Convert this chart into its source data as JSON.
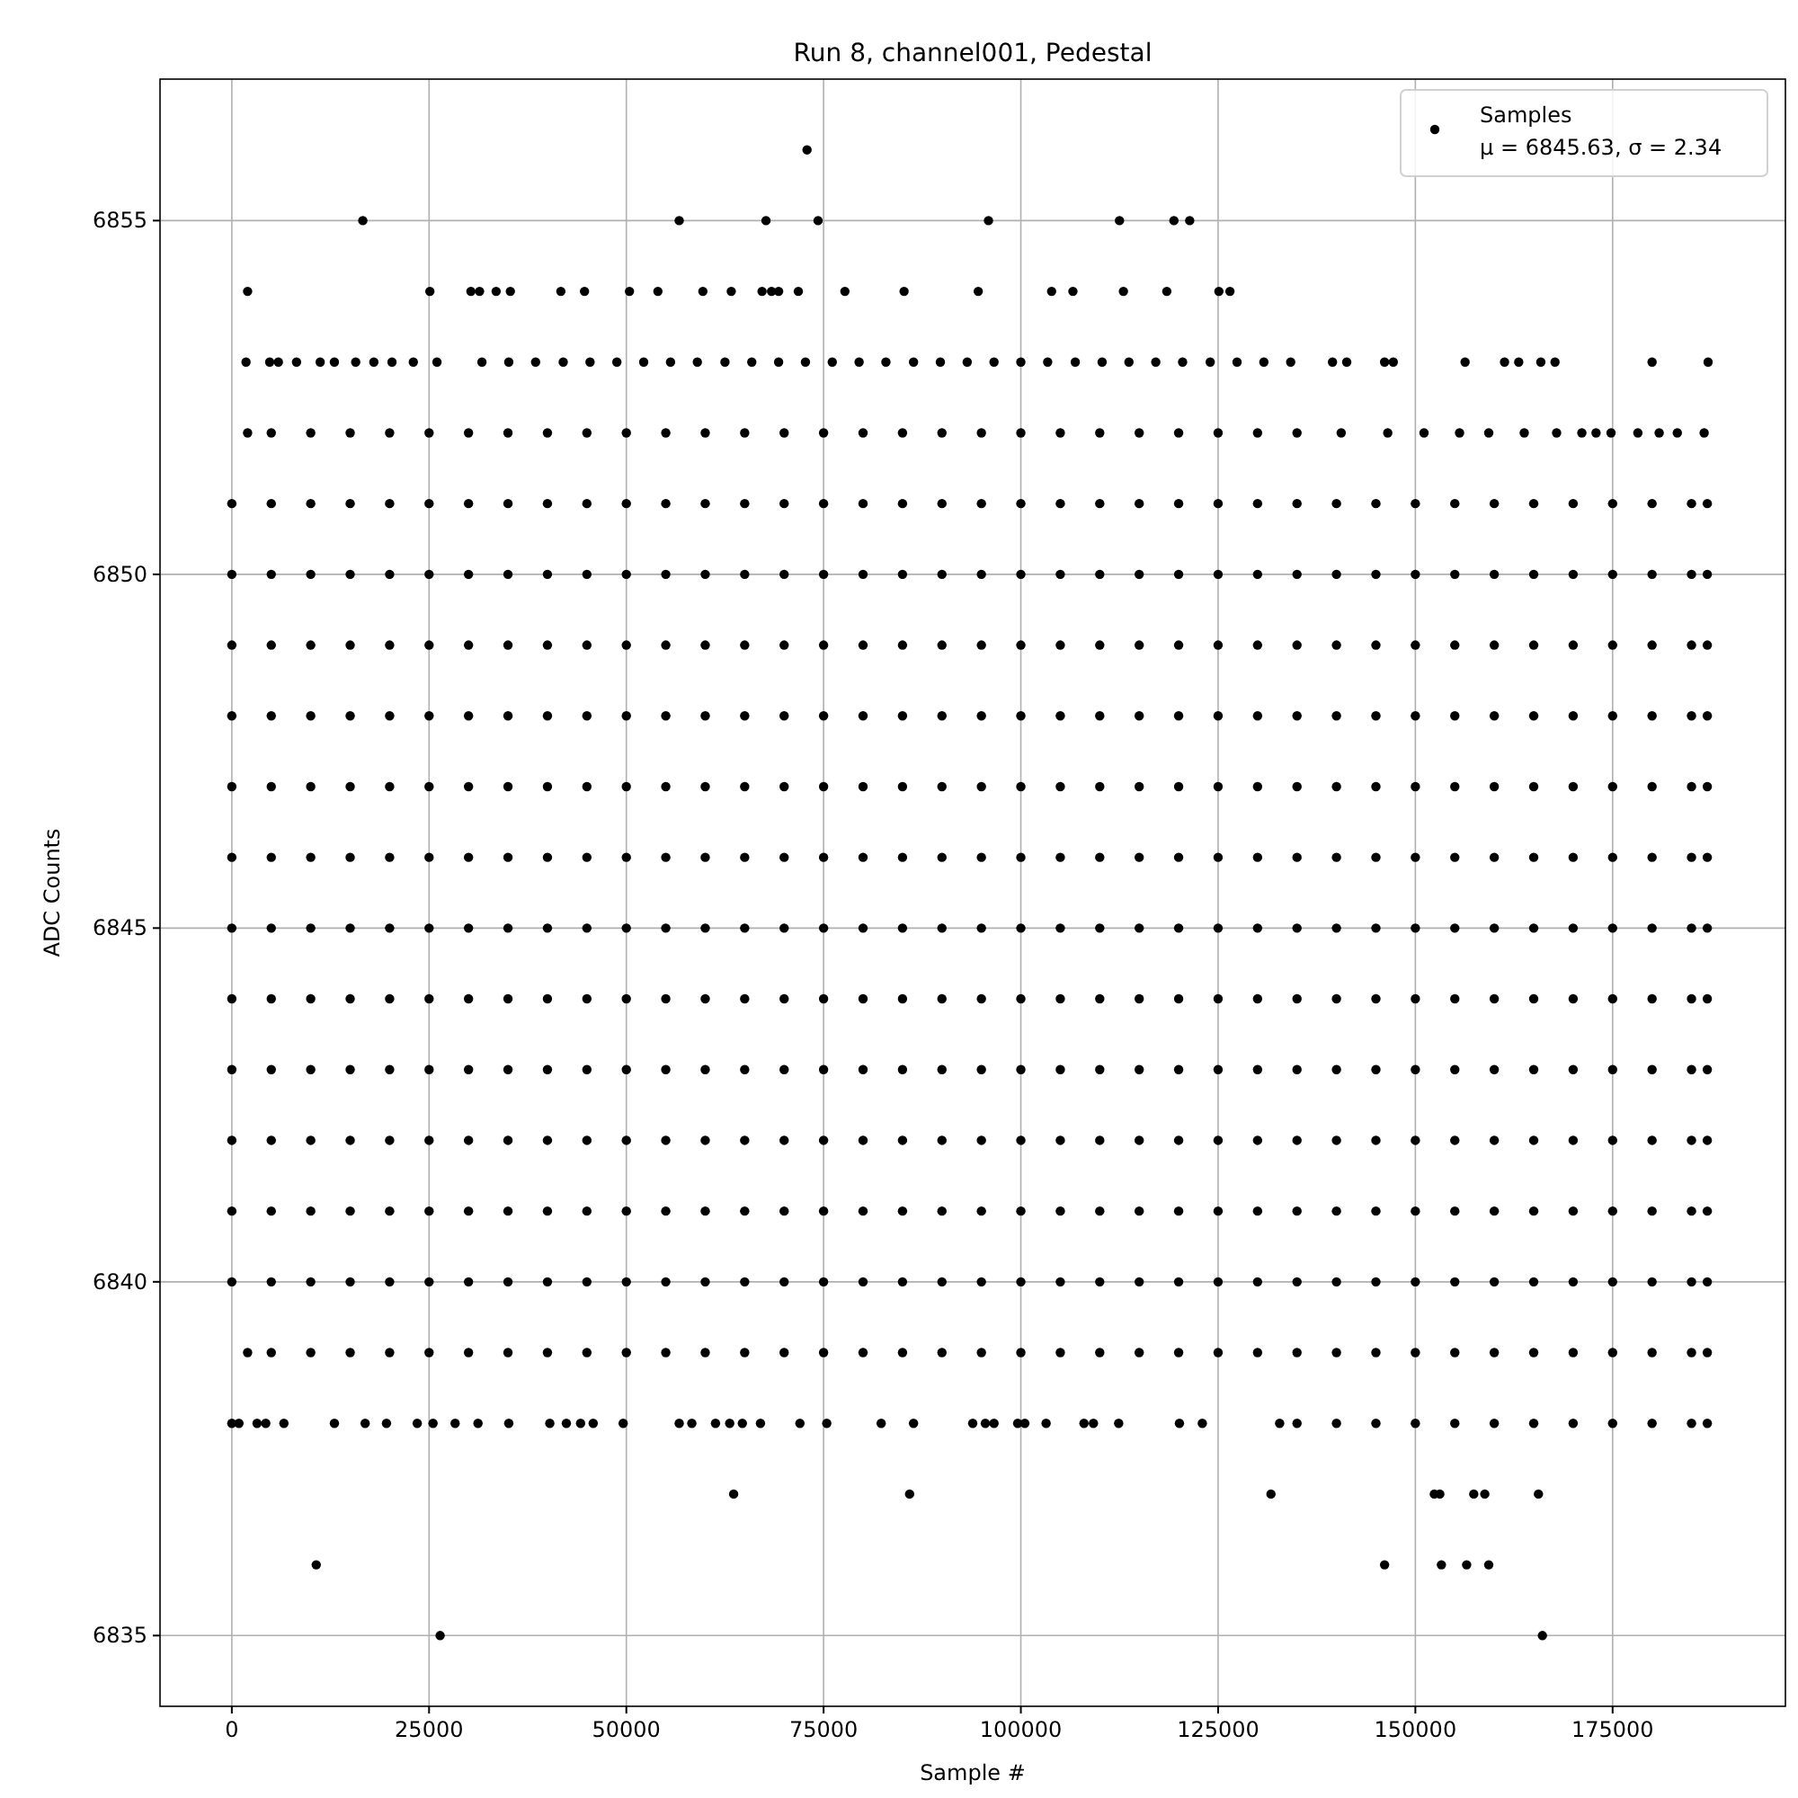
{
  "chart_data": {
    "type": "scatter",
    "title": "Run 8, channel001, Pedestal",
    "xlabel": "Sample #",
    "ylabel": "ADC Counts",
    "xlim": [
      -9100,
      196900
    ],
    "ylim": [
      6834,
      6857
    ],
    "xticks": [
      0,
      25000,
      50000,
      75000,
      100000,
      125000,
      150000,
      175000
    ],
    "yticks": [
      6835,
      6840,
      6845,
      6850,
      6855
    ],
    "grid": true,
    "legend": "top right",
    "marker": "circle",
    "annotations": [
      "μ = 6845.63, σ = 2.34"
    ],
    "series": [
      {
        "name": "Samples",
        "color": "#000000",
        "x": [
          0,
          5000,
          10000,
          15000,
          20000,
          25000,
          30000,
          35000,
          40000,
          45000,
          50000,
          55000,
          60000,
          65000,
          70000,
          75000,
          80000,
          85000,
          90000,
          95000,
          100000,
          105000,
          110000,
          115000,
          120000,
          125000,
          130000,
          135000,
          140000,
          145000,
          150000,
          155000,
          160000,
          165000,
          170000,
          175000,
          180000,
          185000,
          187000
        ],
        "values": [
          6845,
          6845,
          6845,
          6845,
          6845,
          6845,
          6845,
          6845,
          6845,
          6845,
          6845,
          6845,
          6845,
          6845,
          6845,
          6845,
          6845,
          6845,
          6845,
          6845,
          6845,
          6845,
          6845,
          6845,
          6845,
          6845,
          6845,
          6845,
          6845,
          6845,
          6845,
          6845,
          6845,
          6845,
          6845,
          6845,
          6845,
          6845,
          6845
        ]
      },
      {
        "color": "#000000",
        "x": [
          0,
          5000,
          10000,
          15000,
          20000,
          25000,
          30000,
          35000,
          40000,
          45000,
          50000,
          55000,
          60000,
          65000,
          70000,
          75000,
          80000,
          85000,
          90000,
          95000,
          100000,
          105000,
          110000,
          115000,
          120000,
          125000,
          130000,
          135000,
          140000,
          145000,
          150000,
          155000,
          160000,
          165000,
          170000,
          175000,
          180000,
          185000,
          187000
        ],
        "values": [
          6840,
          6840,
          6840,
          6840,
          6840,
          6840,
          6840,
          6840,
          6840,
          6840,
          6840,
          6840,
          6840,
          6840,
          6840,
          6840,
          6840,
          6840,
          6840,
          6840,
          6840,
          6840,
          6840,
          6840,
          6840,
          6840,
          6840,
          6840,
          6840,
          6840,
          6840,
          6840,
          6840,
          6840,
          6840,
          6840,
          6840,
          6840,
          6840
        ]
      },
      {
        "color": "#000000",
        "x": [
          0,
          5000,
          10000,
          15000,
          20000,
          25000,
          30000,
          35000,
          40000,
          45000,
          50000,
          55000,
          60000,
          65000,
          70000,
          75000,
          80000,
          85000,
          90000,
          95000,
          100000,
          105000,
          110000,
          115000,
          120000,
          125000,
          130000,
          135000,
          140000,
          145000,
          150000,
          155000,
          160000,
          165000,
          170000,
          175000,
          180000,
          185000,
          187000
        ],
        "values": [
          6841,
          6841,
          6841,
          6841,
          6841,
          6841,
          6841,
          6841,
          6841,
          6841,
          6841,
          6841,
          6841,
          6841,
          6841,
          6841,
          6841,
          6841,
          6841,
          6841,
          6841,
          6841,
          6841,
          6841,
          6841,
          6841,
          6841,
          6841,
          6841,
          6841,
          6841,
          6841,
          6841,
          6841,
          6841,
          6841,
          6841,
          6841,
          6841
        ]
      },
      {
        "color": "#000000",
        "x": [
          0,
          5000,
          10000,
          15000,
          20000,
          25000,
          30000,
          35000,
          40000,
          45000,
          50000,
          55000,
          60000,
          65000,
          70000,
          75000,
          80000,
          85000,
          90000,
          95000,
          100000,
          105000,
          110000,
          115000,
          120000,
          125000,
          130000,
          135000,
          140000,
          145000,
          150000,
          155000,
          160000,
          165000,
          170000,
          175000,
          180000,
          185000,
          187000
        ],
        "values": [
          6842,
          6842,
          6842,
          6842,
          6842,
          6842,
          6842,
          6842,
          6842,
          6842,
          6842,
          6842,
          6842,
          6842,
          6842,
          6842,
          6842,
          6842,
          6842,
          6842,
          6842,
          6842,
          6842,
          6842,
          6842,
          6842,
          6842,
          6842,
          6842,
          6842,
          6842,
          6842,
          6842,
          6842,
          6842,
          6842,
          6842,
          6842,
          6842
        ]
      },
      {
        "color": "#000000",
        "x": [
          0,
          5000,
          10000,
          15000,
          20000,
          25000,
          30000,
          35000,
          40000,
          45000,
          50000,
          55000,
          60000,
          65000,
          70000,
          75000,
          80000,
          85000,
          90000,
          95000,
          100000,
          105000,
          110000,
          115000,
          120000,
          125000,
          130000,
          135000,
          140000,
          145000,
          150000,
          155000,
          160000,
          165000,
          170000,
          175000,
          180000,
          185000,
          187000
        ],
        "values": [
          6843,
          6843,
          6843,
          6843,
          6843,
          6843,
          6843,
          6843,
          6843,
          6843,
          6843,
          6843,
          6843,
          6843,
          6843,
          6843,
          6843,
          6843,
          6843,
          6843,
          6843,
          6843,
          6843,
          6843,
          6843,
          6843,
          6843,
          6843,
          6843,
          6843,
          6843,
          6843,
          6843,
          6843,
          6843,
          6843,
          6843,
          6843,
          6843
        ]
      },
      {
        "color": "#000000",
        "x": [
          0,
          5000,
          10000,
          15000,
          20000,
          25000,
          30000,
          35000,
          40000,
          45000,
          50000,
          55000,
          60000,
          65000,
          70000,
          75000,
          80000,
          85000,
          90000,
          95000,
          100000,
          105000,
          110000,
          115000,
          120000,
          125000,
          130000,
          135000,
          140000,
          145000,
          150000,
          155000,
          160000,
          165000,
          170000,
          175000,
          180000,
          185000,
          187000
        ],
        "values": [
          6844,
          6844,
          6844,
          6844,
          6844,
          6844,
          6844,
          6844,
          6844,
          6844,
          6844,
          6844,
          6844,
          6844,
          6844,
          6844,
          6844,
          6844,
          6844,
          6844,
          6844,
          6844,
          6844,
          6844,
          6844,
          6844,
          6844,
          6844,
          6844,
          6844,
          6844,
          6844,
          6844,
          6844,
          6844,
          6844,
          6844,
          6844,
          6844
        ]
      },
      {
        "color": "#000000",
        "x": [
          0,
          5000,
          10000,
          15000,
          20000,
          25000,
          30000,
          35000,
          40000,
          45000,
          50000,
          55000,
          60000,
          65000,
          70000,
          75000,
          80000,
          85000,
          90000,
          95000,
          100000,
          105000,
          110000,
          115000,
          120000,
          125000,
          130000,
          135000,
          140000,
          145000,
          150000,
          155000,
          160000,
          165000,
          170000,
          175000,
          180000,
          185000,
          187000
        ],
        "values": [
          6846,
          6846,
          6846,
          6846,
          6846,
          6846,
          6846,
          6846,
          6846,
          6846,
          6846,
          6846,
          6846,
          6846,
          6846,
          6846,
          6846,
          6846,
          6846,
          6846,
          6846,
          6846,
          6846,
          6846,
          6846,
          6846,
          6846,
          6846,
          6846,
          6846,
          6846,
          6846,
          6846,
          6846,
          6846,
          6846,
          6846,
          6846,
          6846
        ]
      },
      {
        "color": "#000000",
        "x": [
          0,
          5000,
          10000,
          15000,
          20000,
          25000,
          30000,
          35000,
          40000,
          45000,
          50000,
          55000,
          60000,
          65000,
          70000,
          75000,
          80000,
          85000,
          90000,
          95000,
          100000,
          105000,
          110000,
          115000,
          120000,
          125000,
          130000,
          135000,
          140000,
          145000,
          150000,
          155000,
          160000,
          165000,
          170000,
          175000,
          180000,
          185000,
          187000
        ],
        "values": [
          6847,
          6847,
          6847,
          6847,
          6847,
          6847,
          6847,
          6847,
          6847,
          6847,
          6847,
          6847,
          6847,
          6847,
          6847,
          6847,
          6847,
          6847,
          6847,
          6847,
          6847,
          6847,
          6847,
          6847,
          6847,
          6847,
          6847,
          6847,
          6847,
          6847,
          6847,
          6847,
          6847,
          6847,
          6847,
          6847,
          6847,
          6847,
          6847
        ]
      },
      {
        "color": "#000000",
        "x": [
          0,
          5000,
          10000,
          15000,
          20000,
          25000,
          30000,
          35000,
          40000,
          45000,
          50000,
          55000,
          60000,
          65000,
          70000,
          75000,
          80000,
          85000,
          90000,
          95000,
          100000,
          105000,
          110000,
          115000,
          120000,
          125000,
          130000,
          135000,
          140000,
          145000,
          150000,
          155000,
          160000,
          165000,
          170000,
          175000,
          180000,
          185000,
          187000
        ],
        "values": [
          6848,
          6848,
          6848,
          6848,
          6848,
          6848,
          6848,
          6848,
          6848,
          6848,
          6848,
          6848,
          6848,
          6848,
          6848,
          6848,
          6848,
          6848,
          6848,
          6848,
          6848,
          6848,
          6848,
          6848,
          6848,
          6848,
          6848,
          6848,
          6848,
          6848,
          6848,
          6848,
          6848,
          6848,
          6848,
          6848,
          6848,
          6848,
          6848
        ]
      },
      {
        "color": "#000000",
        "x": [
          0,
          5000,
          10000,
          15000,
          20000,
          25000,
          30000,
          35000,
          40000,
          45000,
          50000,
          55000,
          60000,
          65000,
          70000,
          75000,
          80000,
          85000,
          90000,
          95000,
          100000,
          105000,
          110000,
          115000,
          120000,
          125000,
          130000,
          135000,
          140000,
          145000,
          150000,
          155000,
          160000,
          165000,
          170000,
          175000,
          180000,
          185000,
          187000
        ],
        "values": [
          6849,
          6849,
          6849,
          6849,
          6849,
          6849,
          6849,
          6849,
          6849,
          6849,
          6849,
          6849,
          6849,
          6849,
          6849,
          6849,
          6849,
          6849,
          6849,
          6849,
          6849,
          6849,
          6849,
          6849,
          6849,
          6849,
          6849,
          6849,
          6849,
          6849,
          6849,
          6849,
          6849,
          6849,
          6849,
          6849,
          6849,
          6849,
          6849
        ]
      },
      {
        "color": "#000000",
        "x": [
          0,
          5000,
          10000,
          15000,
          20000,
          25000,
          30000,
          35000,
          40000,
          45000,
          50000,
          55000,
          60000,
          65000,
          70000,
          75000,
          80000,
          85000,
          90000,
          95000,
          100000,
          105000,
          110000,
          115000,
          120000,
          125000,
          130000,
          135000,
          140000,
          145000,
          150000,
          155000,
          160000,
          165000,
          170000,
          175000,
          180000,
          185000,
          187000
        ],
        "values": [
          6850,
          6850,
          6850,
          6850,
          6850,
          6850,
          6850,
          6850,
          6850,
          6850,
          6850,
          6850,
          6850,
          6850,
          6850,
          6850,
          6850,
          6850,
          6850,
          6850,
          6850,
          6850,
          6850,
          6850,
          6850,
          6850,
          6850,
          6850,
          6850,
          6850,
          6850,
          6850,
          6850,
          6850,
          6850,
          6850,
          6850,
          6850,
          6850
        ]
      },
      {
        "color": "#000000",
        "x": [
          0,
          5000,
          10000,
          15000,
          20000,
          25000,
          30000,
          35000,
          40000,
          45000,
          50000,
          55000,
          60000,
          65000,
          70000,
          75000,
          80000,
          85000,
          90000,
          95000,
          100000,
          105000,
          110000,
          115000,
          120000,
          125000,
          130000,
          135000,
          140000,
          145000,
          150000,
          155000,
          160000,
          165000,
          170000,
          175000,
          180000,
          185000,
          187000
        ],
        "values": [
          6851,
          6851,
          6851,
          6851,
          6851,
          6851,
          6851,
          6851,
          6851,
          6851,
          6851,
          6851,
          6851,
          6851,
          6851,
          6851,
          6851,
          6851,
          6851,
          6851,
          6851,
          6851,
          6851,
          6851,
          6851,
          6851,
          6851,
          6851,
          6851,
          6851,
          6851,
          6851,
          6851,
          6851,
          6851,
          6851,
          6851,
          6851,
          6851
        ]
      },
      {
        "color": "#000000",
        "x": [
          2000,
          5000,
          10000,
          15000,
          20000,
          25000,
          30000,
          35000,
          40000,
          45000,
          50000,
          55000,
          60000,
          65000,
          70000,
          75000,
          80000,
          85000,
          90000,
          95000,
          100000,
          105000,
          110000,
          115000,
          120000,
          125000,
          130000,
          135000,
          140000,
          145000,
          150000,
          155000,
          160000,
          165000,
          170000,
          175000,
          180000,
          185000,
          187000
        ],
        "values": [
          6839,
          6839,
          6839,
          6839,
          6839,
          6839,
          6839,
          6839,
          6839,
          6839,
          6839,
          6839,
          6839,
          6839,
          6839,
          6839,
          6839,
          6839,
          6839,
          6839,
          6839,
          6839,
          6839,
          6839,
          6839,
          6839,
          6839,
          6839,
          6839,
          6839,
          6839,
          6839,
          6839,
          6839,
          6839,
          6839,
          6839,
          6839,
          6839
        ]
      },
      {
        "color": "#000000",
        "x": [
          2000,
          5000,
          10000,
          15000,
          20000,
          25000,
          30000,
          35000,
          40000,
          45000,
          50000,
          55000,
          60000,
          65000,
          70000,
          75000,
          80000,
          85000,
          90000,
          95000,
          100000,
          105000,
          110000,
          115000,
          120000,
          125000,
          130000,
          135000,
          140600,
          146500,
          151100,
          155600,
          159300,
          163800,
          167900,
          171100,
          172900,
          174800,
          178200,
          180900,
          183200,
          186600
        ],
        "values": [
          6852,
          6852,
          6852,
          6852,
          6852,
          6852,
          6852,
          6852,
          6852,
          6852,
          6852,
          6852,
          6852,
          6852,
          6852,
          6852,
          6852,
          6852,
          6852,
          6852,
          6852,
          6852,
          6852,
          6852,
          6852,
          6852,
          6852,
          6852,
          6852,
          6852,
          6852,
          6852,
          6852,
          6852,
          6852,
          6852,
          6852,
          6852,
          6852,
          6852,
          6852,
          6852
        ]
      },
      {
        "color": "#000000",
        "x": [
          1800,
          4800,
          5900,
          8200,
          11200,
          13000,
          15700,
          18000,
          20300,
          23000,
          26000,
          31700,
          35100,
          38500,
          42000,
          45400,
          48800,
          52200,
          55600,
          59000,
          62500,
          65900,
          69300,
          72700,
          76100,
          79500,
          82900,
          86400,
          89800,
          93200,
          96600,
          100000,
          103400,
          106900,
          110300,
          113700,
          117100,
          120500,
          124000,
          127400,
          130800,
          134200,
          139500,
          141300,
          146100,
          147200,
          156300,
          161300,
          163100,
          165900,
          167700,
          180000,
          187100
        ],
        "values": [
          6853,
          6853,
          6853,
          6853,
          6853,
          6853,
          6853,
          6853,
          6853,
          6853,
          6853,
          6853,
          6853,
          6853,
          6853,
          6853,
          6853,
          6853,
          6853,
          6853,
          6853,
          6853,
          6853,
          6853,
          6853,
          6853,
          6853,
          6853,
          6853,
          6853,
          6853,
          6853,
          6853,
          6853,
          6853,
          6853,
          6853,
          6853,
          6853,
          6853,
          6853,
          6853,
          6853,
          6853,
          6853,
          6853,
          6853,
          6853,
          6853,
          6853,
          6853,
          6853,
          6853
        ]
      },
      {
        "color": "#000000",
        "x": [
          2000,
          25100,
          30300,
          31400,
          33500,
          35300,
          41700,
          44700,
          50400,
          54000,
          59700,
          63300,
          67200,
          68400,
          69300,
          71800,
          77700,
          85200,
          94600,
          103900,
          106600,
          113000,
          118500,
          125100,
          126500
        ],
        "values": [
          6854,
          6854,
          6854,
          6854,
          6854,
          6854,
          6854,
          6854,
          6854,
          6854,
          6854,
          6854,
          6854,
          6854,
          6854,
          6854,
          6854,
          6854,
          6854,
          6854,
          6854,
          6854,
          6854,
          6854,
          6854
        ]
      },
      {
        "color": "#000000",
        "x": [
          16600,
          56700,
          67700,
          74300,
          95900,
          112500,
          119400,
          121400
        ],
        "values": [
          6855,
          6855,
          6855,
          6855,
          6855,
          6855,
          6855,
          6855
        ]
      },
      {
        "color": "#000000",
        "x": [
          72900
        ],
        "values": [
          6856
        ]
      },
      {
        "color": "#000000",
        "x": [
          0,
          900,
          3200,
          4300,
          6600,
          13000,
          16900,
          19600,
          23500,
          25500,
          28300,
          31200,
          35100,
          40300,
          42400,
          44200,
          45800,
          49600,
          56700,
          58300,
          61300,
          63100,
          64700,
          67000,
          72000,
          75400,
          82300,
          86400,
          93900,
          95500,
          96600,
          99600,
          100500,
          103200,
          108000,
          109200,
          112400,
          120100,
          123000,
          132800,
          135000,
          140000,
          145000,
          150000,
          155000,
          160000,
          165000,
          170000,
          175000,
          180000,
          185000,
          187000
        ],
        "values": [
          6838,
          6838,
          6838,
          6838,
          6838,
          6838,
          6838,
          6838,
          6838,
          6838,
          6838,
          6838,
          6838,
          6838,
          6838,
          6838,
          6838,
          6838,
          6838,
          6838,
          6838,
          6838,
          6838,
          6838,
          6838,
          6838,
          6838,
          6838,
          6838,
          6838,
          6838,
          6838,
          6838,
          6838,
          6838,
          6838,
          6838,
          6838,
          6838,
          6838,
          6838,
          6838,
          6838,
          6838,
          6838,
          6838,
          6838,
          6838,
          6838,
          6838,
          6838,
          6838
        ]
      },
      {
        "color": "#000000",
        "x": [
          63600,
          85900,
          131700,
          152400,
          153100,
          157400,
          158800,
          165600
        ],
        "values": [
          6837,
          6837,
          6837,
          6837,
          6837,
          6837,
          6837,
          6837
        ]
      },
      {
        "color": "#000000",
        "x": [
          10700,
          146100,
          153300,
          156500,
          159300
        ],
        "values": [
          6836,
          6836,
          6836,
          6836,
          6836
        ]
      },
      {
        "color": "#000000",
        "x": [
          26400,
          166100
        ],
        "values": [
          6835,
          6835
        ]
      }
    ]
  }
}
